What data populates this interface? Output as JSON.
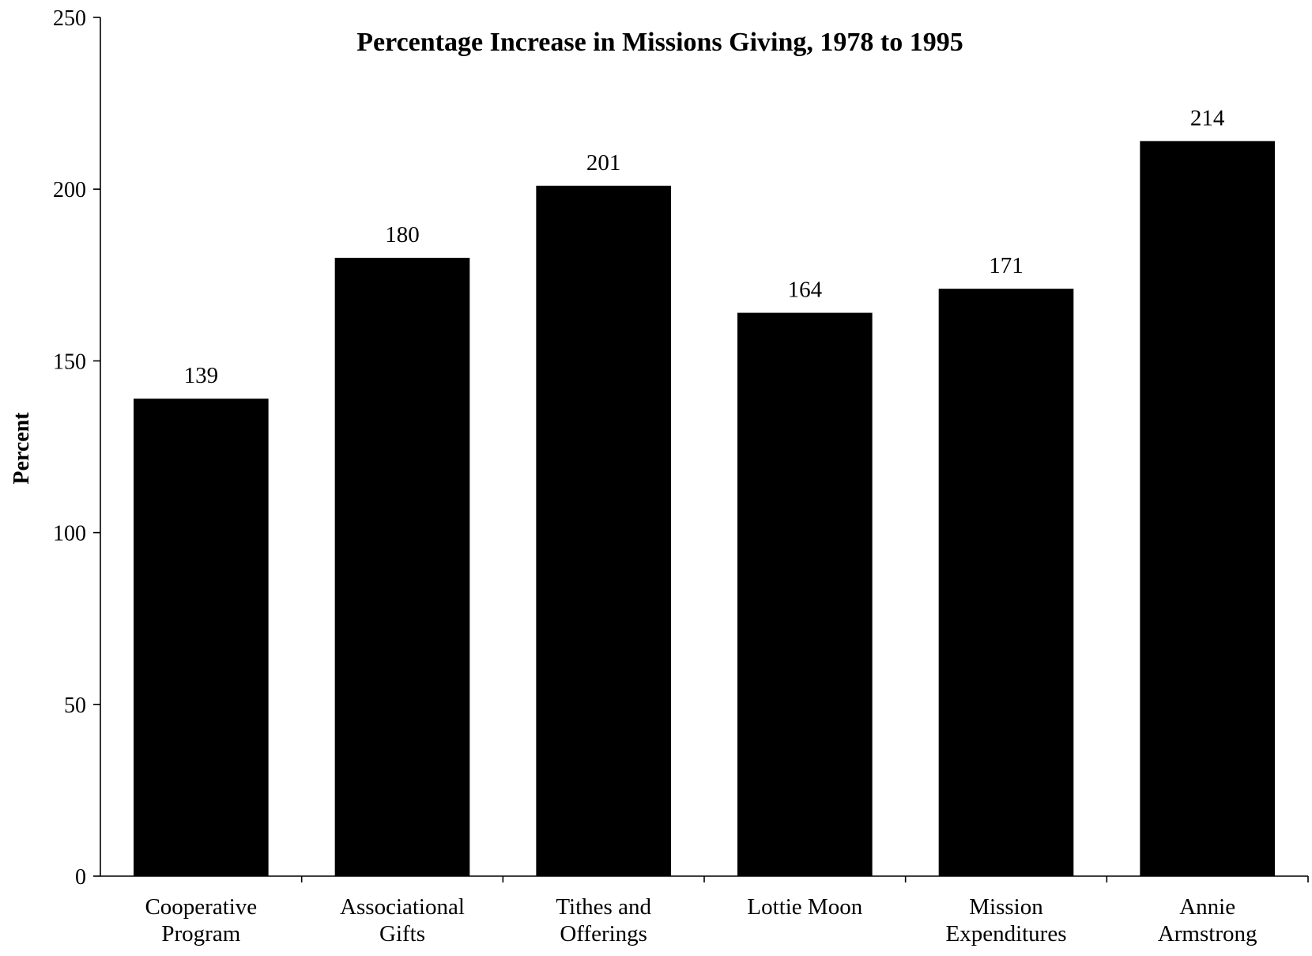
{
  "chart_data": {
    "type": "bar",
    "title": "Percentage Increase in Missions Giving, 1978 to 1995",
    "xlabel": "",
    "ylabel": "Percent",
    "ylim": [
      0,
      250
    ],
    "yticks": [
      0,
      50,
      100,
      150,
      200,
      250
    ],
    "categories": [
      [
        "Cooperative",
        "Program"
      ],
      [
        "Associational",
        "Gifts"
      ],
      [
        "Tithes and",
        "Offerings"
      ],
      [
        "Lottie Moon"
      ],
      [
        "Mission",
        "Expenditures"
      ],
      [
        "Annie",
        "Armstrong"
      ]
    ],
    "values": [
      139,
      180,
      201,
      164,
      171,
      214
    ],
    "data_labels": [
      "139",
      "180",
      "201",
      "164",
      "171",
      "214"
    ],
    "grid": false,
    "legend": "none",
    "bar_color": "#000000"
  }
}
